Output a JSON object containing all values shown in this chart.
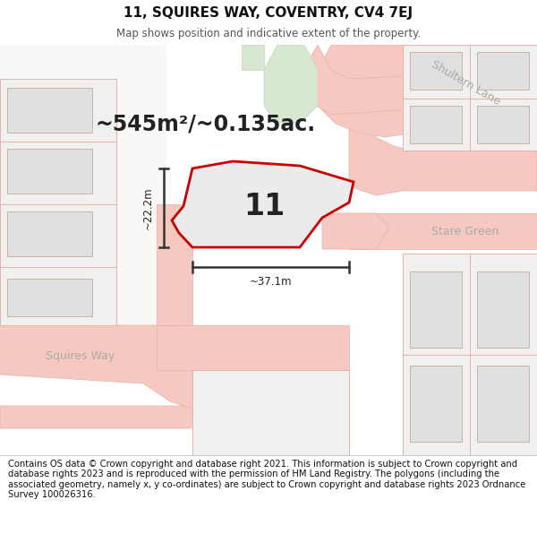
{
  "title": "11, SQUIRES WAY, COVENTRY, CV4 7EJ",
  "subtitle": "Map shows position and indicative extent of the property.",
  "area_label": "~545m²/~0.135ac.",
  "number_label": "11",
  "dim_width": "~37.1m",
  "dim_height": "~22.2m",
  "road_label_1": "Shultern Lane",
  "road_label_2": "Stare Green",
  "road_label_3": "Squires Way",
  "footer": "Contains OS data © Crown copyright and database right 2021. This information is subject to Crown copyright and database rights 2023 and is reproduced with the permission of HM Land Registry. The polygons (including the associated geometry, namely x, y co-ordinates) are subject to Crown copyright and database rights 2023 Ordnance Survey 100026316.",
  "map_bg": "#f5f4f0",
  "road_color": "#f5c8c0",
  "road_edge": "#e8b0a8",
  "green_color": "#d8e8d0",
  "green_edge": "#c0d8b8",
  "building_fill": "#e0e0e0",
  "building_edge": "#d0b0a8",
  "plot_fill": "#ebebeb",
  "plot_outline": "#cc0000",
  "inner_fill": "#d8d8d4",
  "inner_edge": "#c0b8b0",
  "text_dark": "#222222",
  "text_road": "#aaaaaa",
  "footer_color": "#111111",
  "title_color": "#111111"
}
